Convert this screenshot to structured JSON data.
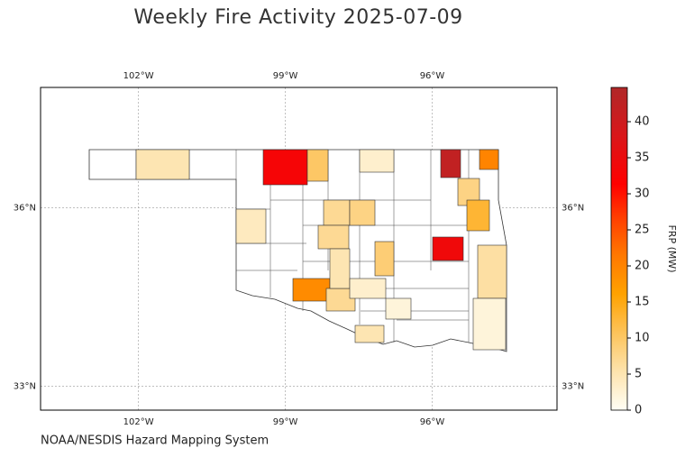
{
  "title": "Weekly Fire Activity 2025-07-09",
  "source": "NOAA/NESDIS Hazard Mapping System",
  "map": {
    "xlim": [
      -104,
      -93.45
    ],
    "ylim": [
      32.6,
      38.02
    ],
    "xticks": [
      {
        "value": -102,
        "label": "102°W"
      },
      {
        "value": -99,
        "label": "99°W"
      },
      {
        "value": -96,
        "label": "96°W"
      }
    ],
    "yticks": [
      {
        "value": 33,
        "label": "33°N"
      },
      {
        "value": 36,
        "label": "36°N"
      }
    ],
    "grid": true,
    "county_values": [
      5,
      33,
      10,
      3,
      42,
      20,
      8,
      13,
      7,
      8,
      4,
      7,
      34,
      9,
      6,
      19,
      7,
      5,
      3,
      5,
      2,
      2
    ]
  },
  "colorbar": {
    "label": "FRP (MW)",
    "lim": [
      0,
      44.75
    ],
    "ticks": [
      0,
      5,
      10,
      15,
      20,
      25,
      30,
      35,
      40
    ]
  }
}
